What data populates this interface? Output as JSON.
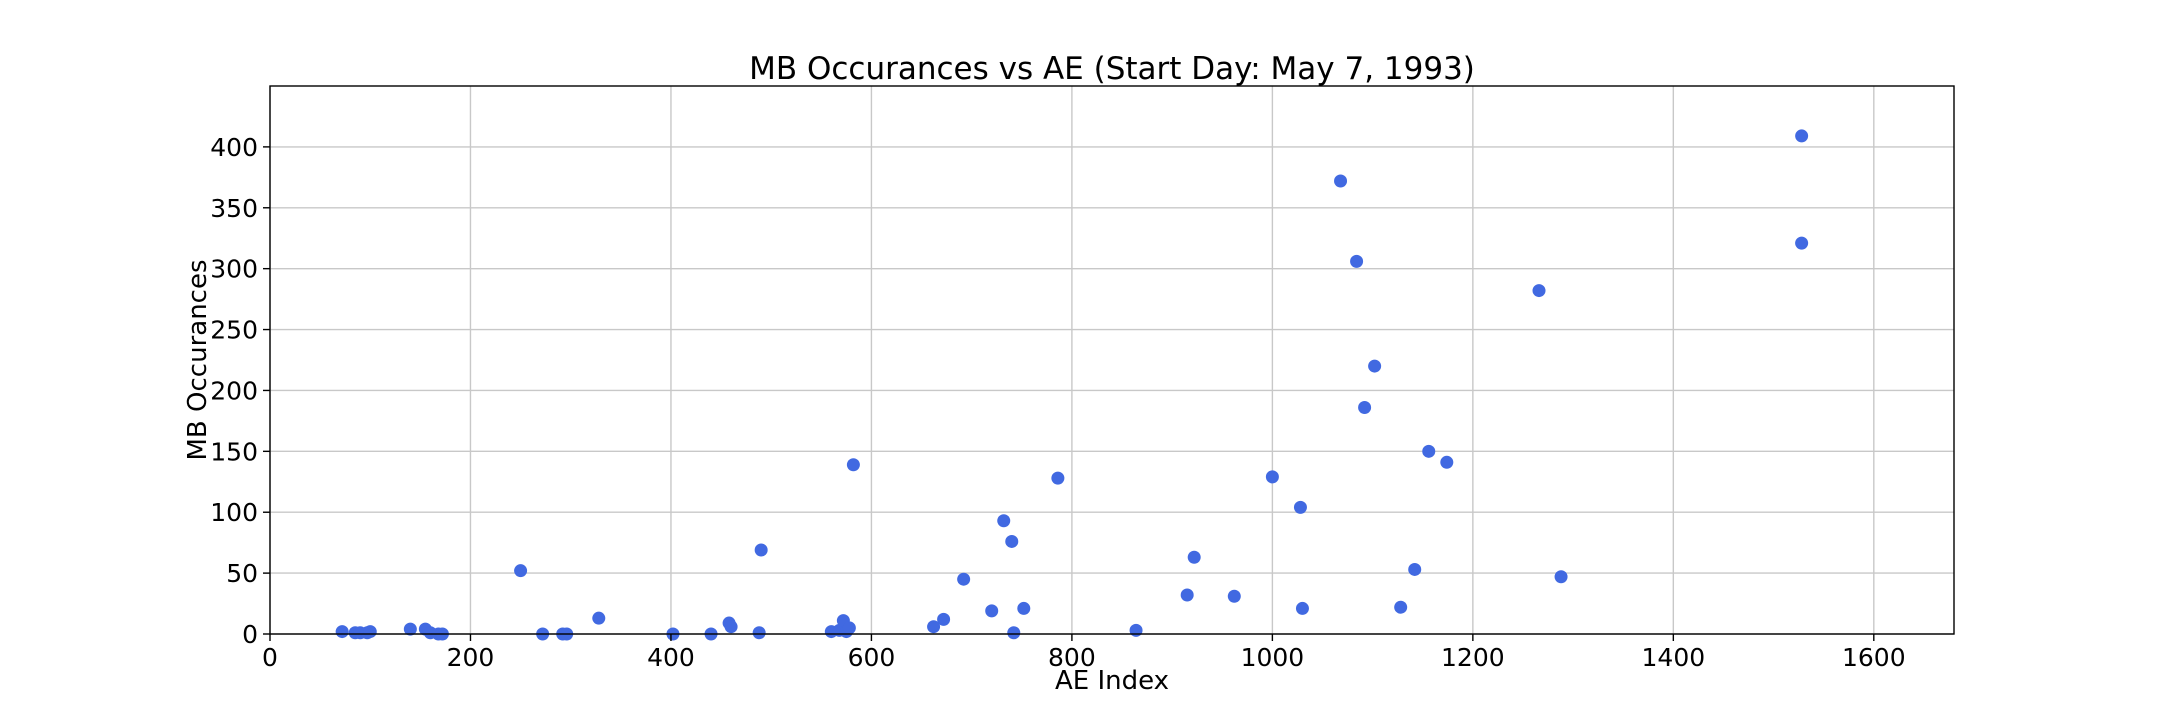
{
  "chart_data": {
    "type": "scatter",
    "title": "MB Occurances vs AE (Start Day: May 7, 1993)",
    "xlabel": "AE Index",
    "ylabel": "MB Occurances",
    "xlim": [
      0,
      1680
    ],
    "ylim": [
      0,
      450
    ],
    "xticks": [
      0,
      200,
      400,
      600,
      800,
      1000,
      1200,
      1400,
      1600
    ],
    "yticks": [
      0,
      50,
      100,
      150,
      200,
      250,
      300,
      350,
      400
    ],
    "grid": true,
    "marker_color": "#4169e1",
    "series": [
      {
        "x": [
          72,
          85,
          90,
          97,
          100,
          140,
          155,
          160,
          168,
          172,
          250,
          272,
          292,
          296,
          328,
          402,
          440,
          458,
          460,
          488,
          490,
          560,
          568,
          572,
          575,
          578,
          582,
          662,
          672,
          692,
          720,
          732,
          740,
          742,
          752,
          786,
          864,
          915,
          922,
          962,
          1000,
          1028,
          1030,
          1068,
          1084,
          1092,
          1102,
          1128,
          1142,
          1156,
          1174,
          1266,
          1288,
          1528,
          1528
        ],
        "y": [
          2,
          1,
          1,
          1,
          2,
          4,
          4,
          1,
          0,
          0,
          52,
          0,
          0,
          0,
          13,
          0,
          0,
          9,
          6,
          1,
          69,
          2,
          3,
          11,
          2,
          5,
          139,
          6,
          12,
          45,
          19,
          93,
          76,
          1,
          21,
          128,
          3,
          32,
          63,
          31,
          129,
          104,
          21,
          372,
          306,
          186,
          220,
          22,
          53,
          150,
          141,
          282,
          47,
          409,
          321
        ]
      }
    ]
  }
}
